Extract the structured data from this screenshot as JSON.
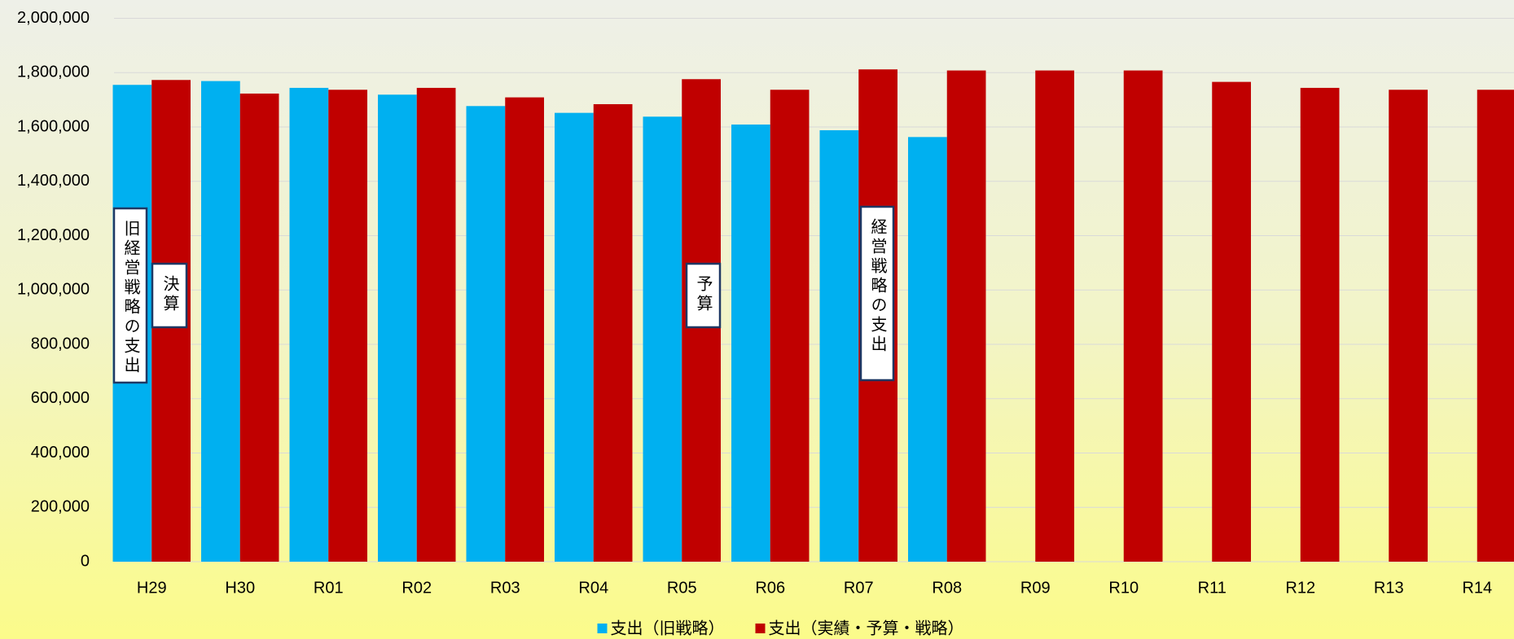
{
  "chart_data": {
    "type": "bar",
    "categories": [
      "H29",
      "H30",
      "R01",
      "R02",
      "R03",
      "R04",
      "R05",
      "R06",
      "R07",
      "R08",
      "R09",
      "R10",
      "R11",
      "R12",
      "R13",
      "R14"
    ],
    "series": [
      {
        "name": "支出（旧戦略）",
        "color": "#00b0f0",
        "values": [
          1755000,
          1769000,
          1744000,
          1719000,
          1677000,
          1652000,
          1638000,
          1609000,
          1588000,
          1563000,
          null,
          null,
          null,
          null,
          null,
          null
        ]
      },
      {
        "name": "支出（実績・予算・戦略）",
        "color": "#c00000",
        "values": [
          1773000,
          1723000,
          1737000,
          1744000,
          1709000,
          1684000,
          1776000,
          1737000,
          1812000,
          1808000,
          1808000,
          1808000,
          1766000,
          1744000,
          1737000,
          1737000
        ]
      }
    ],
    "ylim": [
      0,
      2000000
    ],
    "yticks": [
      0,
      {
        "value": 200000,
        "label": "200,000"
      },
      {
        "value": 400000,
        "label": "400,000"
      },
      {
        "value": 600000,
        "label": "600,000"
      },
      {
        "value": 800000,
        "label": "800,000"
      },
      {
        "value": 1000000,
        "label": "1,000,000"
      },
      {
        "value": 1200000,
        "label": "1,200,000"
      },
      {
        "value": 1400000,
        "label": "1,400,000"
      },
      {
        "value": 1600000,
        "label": "1,600,000"
      },
      {
        "value": 1800000,
        "label": "1,800,000"
      },
      {
        "value": 2000000,
        "label": "2,000,000"
      }
    ],
    "grid": true,
    "legend": "bottom",
    "annotations": [
      "旧経営戦略の支出",
      "決算",
      "予算",
      "経営戦略の支出"
    ]
  }
}
